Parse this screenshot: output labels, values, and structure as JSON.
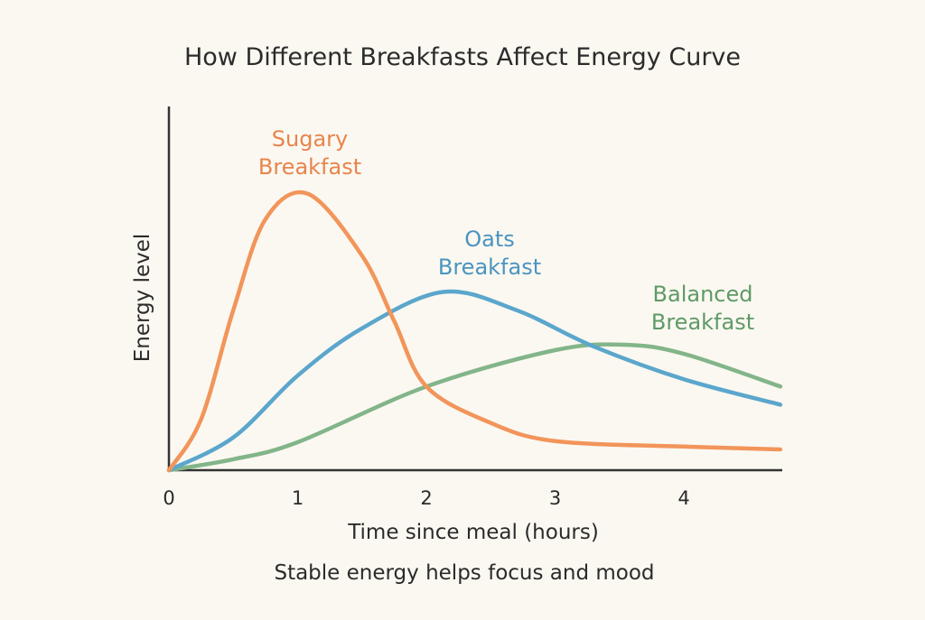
{
  "chart_data": {
    "type": "line",
    "title": "How Different Breakfasts Affect Energy Curve",
    "xlabel": "Time since meal (hours)",
    "ylabel": "Energy level",
    "caption": "Stable energy helps focus and mood",
    "xlim": [
      0,
      4.75
    ],
    "ylim": [
      0,
      1
    ],
    "xticks": [
      "0",
      "1",
      "2",
      "3",
      "4"
    ],
    "grid": false,
    "legend": "inline labels",
    "series": [
      {
        "name": "Sugary Breakfast",
        "label_lines": [
          "Sugary",
          "Breakfast"
        ],
        "color": "#f2955a",
        "label_color": "#e8844c",
        "x": [
          0,
          0.25,
          0.5,
          0.75,
          1.08,
          1.5,
          1.75,
          2,
          2.5,
          3,
          4,
          4.75
        ],
        "y": [
          0,
          0.14,
          0.44,
          0.69,
          0.76,
          0.59,
          0.41,
          0.23,
          0.13,
          0.08,
          0.065,
          0.057
        ]
      },
      {
        "name": "Oats Breakfast",
        "label_lines": [
          "Oats",
          "Breakfast"
        ],
        "color": "#5ba6cc",
        "label_color": "#4a94c0",
        "x": [
          0,
          0.5,
          1,
          1.5,
          2.13,
          2.7,
          3.3,
          4,
          4.75
        ],
        "y": [
          0,
          0.09,
          0.26,
          0.39,
          0.49,
          0.44,
          0.34,
          0.25,
          0.18
        ]
      },
      {
        "name": "Balanced Breakfast",
        "label_lines": [
          "Balanced",
          "Breakfast"
        ],
        "color": "#82b589",
        "label_color": "#5f9a66",
        "x": [
          0,
          0.5,
          1,
          2,
          3,
          3.54,
          4,
          4.75
        ],
        "y": [
          0,
          0.03,
          0.077,
          0.23,
          0.33,
          0.345,
          0.32,
          0.23
        ]
      }
    ]
  }
}
